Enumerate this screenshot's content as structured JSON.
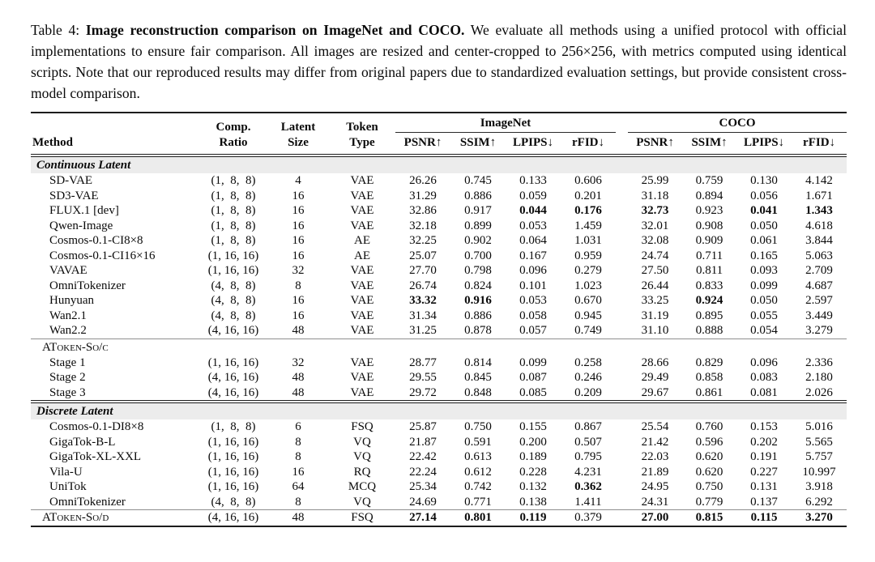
{
  "caption": {
    "label": "Table 4: ",
    "title_bold": "Image reconstruction comparison on ImageNet and COCO.",
    "body": " We evaluate all methods using a unified protocol with official implementations to ensure fair comparison. All images are resized and center-cropped to 256×256, with metrics computed using identical scripts. Note that our reproduced results may differ from original papers due to standardized evaluation settings, but provide consistent cross-model comparison."
  },
  "colors": {
    "band_background": "#ececec",
    "rule": "#1c1c1c",
    "text": "#0a0a0a"
  },
  "table": {
    "headers": {
      "method": "Method",
      "comp_ratio": [
        "Comp.",
        "Ratio"
      ],
      "latent_size": [
        "Latent",
        "Size"
      ],
      "token_type": [
        "Token",
        "Type"
      ],
      "groups": [
        {
          "label": "ImageNet",
          "metrics": [
            "PSNR↑",
            "SSIM↑",
            "LPIPS↓",
            "rFID↓"
          ]
        },
        {
          "label": "COCO",
          "metrics": [
            "PSNR↑",
            "SSIM↑",
            "LPIPS↓",
            "rFID↓"
          ]
        }
      ]
    },
    "sections": [
      {
        "id": "continuous-latent",
        "kind": "band",
        "label": "Continuous Latent",
        "rows": [
          {
            "method": "SD-VAE",
            "ratio": "(1,  8,  8)",
            "latent": "4",
            "token": "VAE",
            "values": [
              "26.26",
              "0.745",
              "0.133",
              "0.606",
              "25.99",
              "0.759",
              "0.130",
              "4.142"
            ],
            "bold": []
          },
          {
            "method": "SD3-VAE",
            "ratio": "(1,  8,  8)",
            "latent": "16",
            "token": "VAE",
            "values": [
              "31.29",
              "0.886",
              "0.059",
              "0.201",
              "31.18",
              "0.894",
              "0.056",
              "1.671"
            ],
            "bold": []
          },
          {
            "method": "FLUX.1 [dev]",
            "ratio": "(1,  8,  8)",
            "latent": "16",
            "token": "VAE",
            "values": [
              "32.86",
              "0.917",
              "0.044",
              "0.176",
              "32.73",
              "0.923",
              "0.041",
              "1.343"
            ],
            "bold": [
              2,
              3,
              4,
              6,
              7
            ]
          },
          {
            "method": "Qwen-Image",
            "ratio": "(1,  8,  8)",
            "latent": "16",
            "token": "VAE",
            "values": [
              "32.18",
              "0.899",
              "0.053",
              "1.459",
              "32.01",
              "0.908",
              "0.050",
              "4.618"
            ],
            "bold": []
          },
          {
            "method": "Cosmos-0.1-CI8×8",
            "ratio": "(1,  8,  8)",
            "latent": "16",
            "token": "AE",
            "values": [
              "32.25",
              "0.902",
              "0.064",
              "1.031",
              "32.08",
              "0.909",
              "0.061",
              "3.844"
            ],
            "bold": []
          },
          {
            "method": "Cosmos-0.1-CI16×16",
            "ratio": "(1, 16, 16)",
            "latent": "16",
            "token": "AE",
            "values": [
              "25.07",
              "0.700",
              "0.167",
              "0.959",
              "24.74",
              "0.711",
              "0.165",
              "5.063"
            ],
            "bold": []
          },
          {
            "method": "VAVAE",
            "ratio": "(1, 16, 16)",
            "latent": "32",
            "token": "VAE",
            "values": [
              "27.70",
              "0.798",
              "0.096",
              "0.279",
              "27.50",
              "0.811",
              "0.093",
              "2.709"
            ],
            "bold": []
          },
          {
            "method": "OmniTokenizer",
            "ratio": "(4,  8,  8)",
            "latent": "8",
            "token": "VAE",
            "values": [
              "26.74",
              "0.824",
              "0.101",
              "1.023",
              "26.44",
              "0.833",
              "0.099",
              "4.687"
            ],
            "bold": []
          },
          {
            "method": "Hunyuan",
            "ratio": "(4,  8,  8)",
            "latent": "16",
            "token": "VAE",
            "values": [
              "33.32",
              "0.916",
              "0.053",
              "0.670",
              "33.25",
              "0.924",
              "0.050",
              "2.597"
            ],
            "bold": [
              0,
              1,
              5
            ]
          },
          {
            "method": "Wan2.1",
            "ratio": "(4,  8,  8)",
            "latent": "16",
            "token": "VAE",
            "values": [
              "31.34",
              "0.886",
              "0.058",
              "0.945",
              "31.19",
              "0.895",
              "0.055",
              "3.449"
            ],
            "bold": []
          },
          {
            "method": "Wan2.2",
            "ratio": "(4, 16, 16)",
            "latent": "48",
            "token": "VAE",
            "values": [
              "31.25",
              "0.878",
              "0.057",
              "0.749",
              "31.10",
              "0.888",
              "0.054",
              "3.279"
            ],
            "bold": []
          }
        ]
      },
      {
        "id": "atoken-so-c",
        "kind": "plain",
        "label": "AToken-So/c",
        "label_smallcaps": true,
        "rows": [
          {
            "method": "Stage 1",
            "ratio": "(1, 16, 16)",
            "latent": "32",
            "token": "VAE",
            "values": [
              "28.77",
              "0.814",
              "0.099",
              "0.258",
              "28.66",
              "0.829",
              "0.096",
              "2.336"
            ],
            "bold": []
          },
          {
            "method": "Stage 2",
            "ratio": "(4, 16, 16)",
            "latent": "48",
            "token": "VAE",
            "values": [
              "29.55",
              "0.845",
              "0.087",
              "0.246",
              "29.49",
              "0.858",
              "0.083",
              "2.180"
            ],
            "bold": []
          },
          {
            "method": "Stage 3",
            "ratio": "(4, 16, 16)",
            "latent": "48",
            "token": "VAE",
            "values": [
              "29.72",
              "0.848",
              "0.085",
              "0.209",
              "29.67",
              "0.861",
              "0.081",
              "2.026"
            ],
            "bold": []
          }
        ]
      },
      {
        "id": "discrete-latent",
        "kind": "band",
        "label": "Discrete Latent",
        "rows": [
          {
            "method": "Cosmos-0.1-DI8×8",
            "ratio": "(1,  8,  8)",
            "latent": "6",
            "token": "FSQ",
            "values": [
              "25.87",
              "0.750",
              "0.155",
              "0.867",
              "25.54",
              "0.760",
              "0.153",
              "5.016"
            ],
            "bold": []
          },
          {
            "method": "GigaTok-B-L",
            "ratio": "(1, 16, 16)",
            "latent": "8",
            "token": "VQ",
            "values": [
              "21.87",
              "0.591",
              "0.200",
              "0.507",
              "21.42",
              "0.596",
              "0.202",
              "5.565"
            ],
            "bold": []
          },
          {
            "method": "GigaTok-XL-XXL",
            "ratio": "(1, 16, 16)",
            "latent": "8",
            "token": "VQ",
            "values": [
              "22.42",
              "0.613",
              "0.189",
              "0.795",
              "22.03",
              "0.620",
              "0.191",
              "5.757"
            ],
            "bold": []
          },
          {
            "method": "Vila-U",
            "ratio": "(1, 16, 16)",
            "latent": "16",
            "token": "RQ",
            "values": [
              "22.24",
              "0.612",
              "0.228",
              "4.231",
              "21.89",
              "0.620",
              "0.227",
              "10.997"
            ],
            "bold": []
          },
          {
            "method": "UniTok",
            "ratio": "(1, 16, 16)",
            "latent": "64",
            "token": "MCQ",
            "values": [
              "25.34",
              "0.742",
              "0.132",
              "0.362",
              "24.95",
              "0.750",
              "0.131",
              "3.918"
            ],
            "bold": [
              3
            ]
          },
          {
            "method": "OmniTokenizer",
            "ratio": "(4,  8,  8)",
            "latent": "8",
            "token": "VQ",
            "values": [
              "24.69",
              "0.771",
              "0.138",
              "1.411",
              "24.31",
              "0.779",
              "0.137",
              "6.292"
            ],
            "bold": []
          }
        ]
      },
      {
        "id": "atoken-so-d",
        "kind": "final",
        "rows": [
          {
            "method": "AToken-So/d",
            "method_smallcaps": true,
            "ratio": "(4, 16, 16)",
            "latent": "48",
            "token": "FSQ",
            "values": [
              "27.14",
              "0.801",
              "0.119",
              "0.379",
              "27.00",
              "0.815",
              "0.115",
              "3.270"
            ],
            "bold": [
              0,
              1,
              2,
              4,
              5,
              6,
              7
            ]
          }
        ]
      }
    ]
  }
}
